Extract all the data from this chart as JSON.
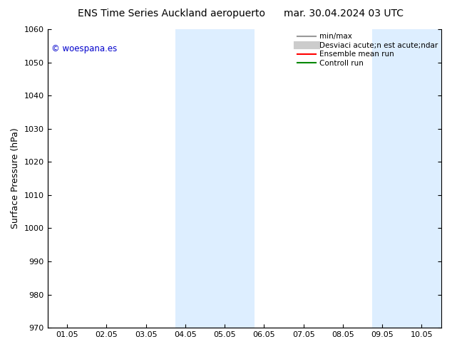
{
  "title_left": "ENS Time Series Auckland aeropuerto",
  "title_right": "mar. 30.04.2024 03 UTC",
  "ylabel": "Surface Pressure (hPa)",
  "ylim": [
    970,
    1060
  ],
  "yticks": [
    970,
    980,
    990,
    1000,
    1010,
    1020,
    1030,
    1040,
    1050,
    1060
  ],
  "xtick_labels": [
    "01.05",
    "02.05",
    "03.05",
    "04.05",
    "05.05",
    "06.05",
    "07.05",
    "08.05",
    "09.05",
    "10.05"
  ],
  "xtick_positions": [
    0,
    1,
    2,
    3,
    4,
    5,
    6,
    7,
    8,
    9
  ],
  "xlim": [
    -0.5,
    9.5
  ],
  "shaded_regions": [
    {
      "xmin": 2.75,
      "xmax": 4.75
    },
    {
      "xmin": 7.75,
      "xmax": 9.5
    }
  ],
  "shaded_color": "#ddeeff",
  "watermark_text": "© woespana.es",
  "watermark_color": "#0000cc",
  "legend_labels": [
    "min/max",
    "Desviaci acute;n est acute;ndar",
    "Ensemble mean run",
    "Controll run"
  ],
  "legend_colors": [
    "#999999",
    "#cccccc",
    "#ff0000",
    "#008800"
  ],
  "legend_lw": [
    1.5,
    8,
    1.5,
    1.5
  ],
  "background_color": "#ffffff",
  "title_fontsize": 10,
  "tick_fontsize": 8,
  "ylabel_fontsize": 9,
  "legend_fontsize": 7.5
}
